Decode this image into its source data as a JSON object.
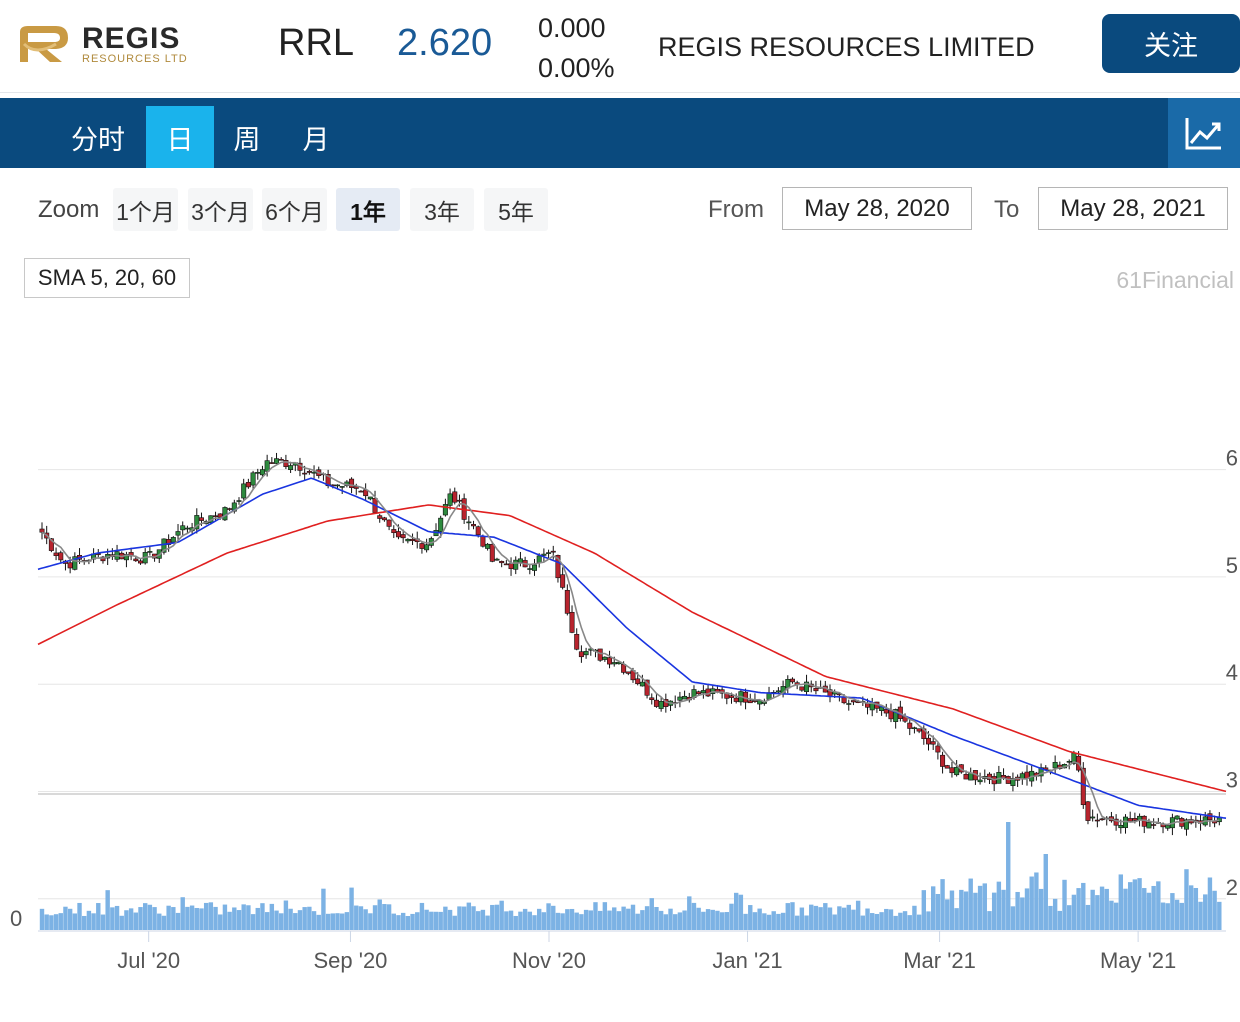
{
  "header": {
    "logo_text": "REGIS",
    "logo_sub": "RESOURCES LTD",
    "ticker": "RRL",
    "price": "2.620",
    "change": "0.000",
    "change_pct": "0.00%",
    "company": "REGIS RESOURCES LIMITED",
    "follow_label": "关注"
  },
  "nav": {
    "tabs": [
      {
        "label": "分时"
      },
      {
        "label": "日"
      },
      {
        "label": "周"
      },
      {
        "label": "月"
      }
    ],
    "active": "日"
  },
  "toolbar": {
    "zoom_label": "Zoom",
    "zoom_options": [
      "1个月",
      "3个月",
      "6个月",
      "1年",
      "3年",
      "5年"
    ],
    "zoom_active": "1年",
    "from_label": "From",
    "from_value": "May 28, 2020",
    "to_label": "To",
    "to_value": "May 28, 2021"
  },
  "indicator_label": "SMA 5, 20, 60",
  "credit": "61Financial",
  "colors": {
    "nav_bg": "#0a4a7e",
    "tab_active": "#1ab3ec",
    "price": "#1a5a96",
    "up": "#2d8a3e",
    "down": "#b8242e",
    "sma5": "#888888",
    "sma20": "#1a35e0",
    "sma60": "#e02020",
    "volume": "#7cb2e4"
  },
  "chart_data": {
    "type": "candlestick",
    "x_ticks": [
      "Jul '20",
      "Sep '20",
      "Nov '20",
      "Jan '21",
      "Mar '21",
      "May '21"
    ],
    "y_ticks": [
      "6",
      "5",
      "4",
      "3",
      "2"
    ],
    "y_range": [
      2,
      6.1
    ],
    "volume_axis_label": "0",
    "legend": [
      "SMA 5",
      "SMA 20",
      "SMA 60"
    ],
    "close_keypoints": [
      {
        "date": "2020-05-28",
        "value": 5.35
      },
      {
        "date": "2020-06-05",
        "value": 5.0
      },
      {
        "date": "2020-06-20",
        "value": 5.1
      },
      {
        "date": "2020-07-01",
        "value": 5.05
      },
      {
        "date": "2020-07-12",
        "value": 5.35
      },
      {
        "date": "2020-07-25",
        "value": 5.5
      },
      {
        "date": "2020-08-06",
        "value": 5.95
      },
      {
        "date": "2020-08-15",
        "value": 5.95
      },
      {
        "date": "2020-08-25",
        "value": 5.75
      },
      {
        "date": "2020-09-05",
        "value": 5.7
      },
      {
        "date": "2020-09-15",
        "value": 5.2
      },
      {
        "date": "2020-09-25",
        "value": 5.2
      },
      {
        "date": "2020-10-02",
        "value": 5.65
      },
      {
        "date": "2020-10-12",
        "value": 5.2
      },
      {
        "date": "2020-10-15",
        "value": 5.0
      },
      {
        "date": "2020-10-25",
        "value": 5.0
      },
      {
        "date": "2020-11-02",
        "value": 5.1
      },
      {
        "date": "2020-11-10",
        "value": 4.2
      },
      {
        "date": "2020-11-22",
        "value": 4.1
      },
      {
        "date": "2020-12-05",
        "value": 3.7
      },
      {
        "date": "2020-12-15",
        "value": 3.8
      },
      {
        "date": "2021-01-05",
        "value": 3.75
      },
      {
        "date": "2021-01-15",
        "value": 3.9
      },
      {
        "date": "2021-02-01",
        "value": 3.7
      },
      {
        "date": "2021-02-15",
        "value": 3.6
      },
      {
        "date": "2021-02-25",
        "value": 3.35
      },
      {
        "date": "2021-03-05",
        "value": 3.05
      },
      {
        "date": "2021-03-20",
        "value": 3.0
      },
      {
        "date": "2021-04-01",
        "value": 3.05
      },
      {
        "date": "2021-04-12",
        "value": 3.2
      },
      {
        "date": "2021-04-15",
        "value": 2.65
      },
      {
        "date": "2021-05-01",
        "value": 2.6
      },
      {
        "date": "2021-05-28",
        "value": 2.62
      }
    ],
    "sma20_keypoints": [
      {
        "date": "2020-05-28",
        "value": 4.95
      },
      {
        "date": "2020-06-15",
        "value": 5.1
      },
      {
        "date": "2020-07-10",
        "value": 5.2
      },
      {
        "date": "2020-08-05",
        "value": 5.65
      },
      {
        "date": "2020-08-20",
        "value": 5.8
      },
      {
        "date": "2020-09-05",
        "value": 5.6
      },
      {
        "date": "2020-09-25",
        "value": 5.3
      },
      {
        "date": "2020-10-15",
        "value": 5.25
      },
      {
        "date": "2020-11-05",
        "value": 5.0
      },
      {
        "date": "2020-11-25",
        "value": 4.4
      },
      {
        "date": "2020-12-15",
        "value": 3.9
      },
      {
        "date": "2021-01-05",
        "value": 3.8
      },
      {
        "date": "2021-02-05",
        "value": 3.75
      },
      {
        "date": "2021-03-05",
        "value": 3.4
      },
      {
        "date": "2021-04-05",
        "value": 3.05
      },
      {
        "date": "2021-05-01",
        "value": 2.75
      },
      {
        "date": "2021-05-28",
        "value": 2.63
      }
    ],
    "sma60_keypoints": [
      {
        "date": "2020-05-28",
        "value": 4.25
      },
      {
        "date": "2020-06-20",
        "value": 4.6
      },
      {
        "date": "2020-07-25",
        "value": 5.1
      },
      {
        "date": "2020-08-25",
        "value": 5.4
      },
      {
        "date": "2020-09-25",
        "value": 5.55
      },
      {
        "date": "2020-10-20",
        "value": 5.45
      },
      {
        "date": "2020-11-15",
        "value": 5.1
      },
      {
        "date": "2020-12-15",
        "value": 4.55
      },
      {
        "date": "2021-01-25",
        "value": 3.95
      },
      {
        "date": "2021-03-05",
        "value": 3.65
      },
      {
        "date": "2021-04-10",
        "value": 3.25
      },
      {
        "date": "2021-05-28",
        "value": 2.88
      }
    ]
  }
}
